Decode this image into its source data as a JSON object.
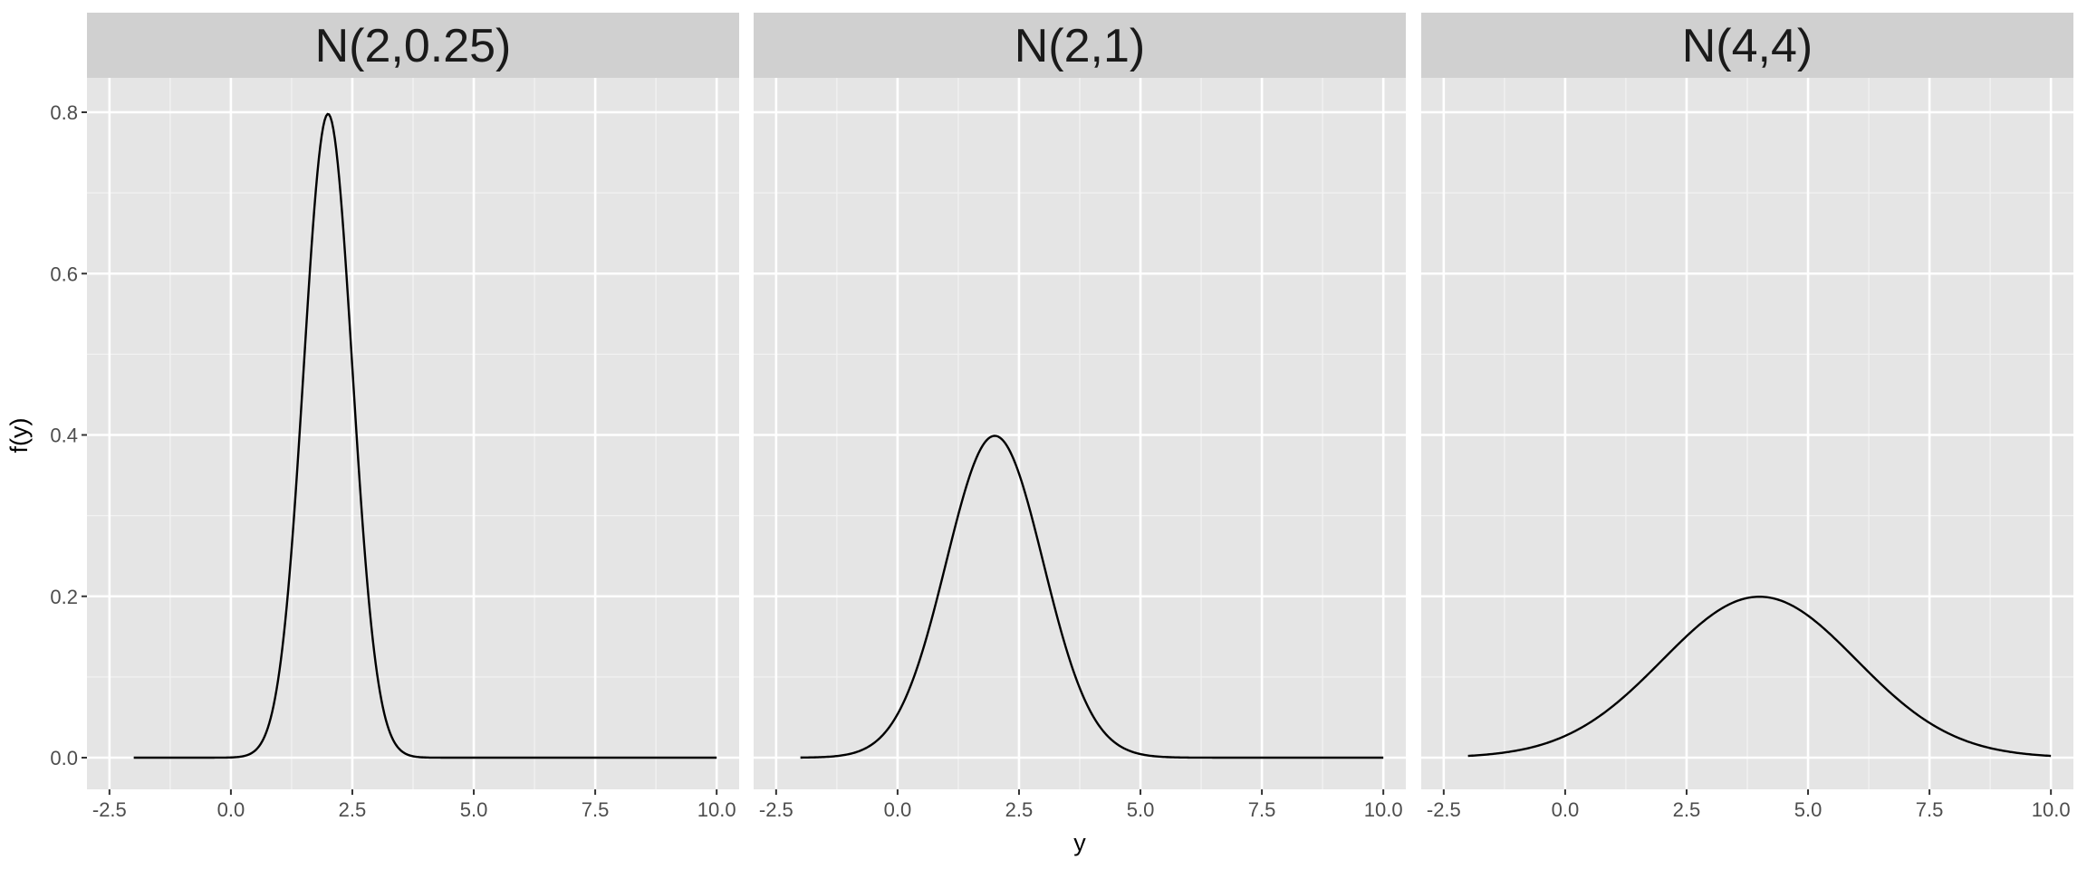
{
  "chart_data": {
    "type": "line",
    "xlabel": "y",
    "ylabel": "f(y)",
    "xlim": [
      -2.5,
      10.0
    ],
    "ylim": [
      0.0,
      0.8
    ],
    "x_ticks": [
      -2.5,
      0.0,
      2.5,
      5.0,
      7.5,
      10.0
    ],
    "x_tick_labels": [
      "-2.5",
      "0.0",
      "2.5",
      "5.0",
      "7.5",
      "10.0"
    ],
    "y_ticks": [
      0.0,
      0.2,
      0.4,
      0.6,
      0.8
    ],
    "y_tick_labels": [
      "0.0",
      "0.2",
      "0.4",
      "0.6",
      "0.8"
    ],
    "grid": true,
    "x_range_plotted": [
      -2,
      10
    ],
    "panels": [
      {
        "title": "N(2,0.25)",
        "mean": 2,
        "variance": 0.25,
        "peak_y": 0.8
      },
      {
        "title": "N(2,1)",
        "mean": 2,
        "variance": 1,
        "peak_y": 0.4
      },
      {
        "title": "N(4,4)",
        "mean": 4,
        "variance": 4,
        "peak_y": 0.2
      }
    ]
  }
}
